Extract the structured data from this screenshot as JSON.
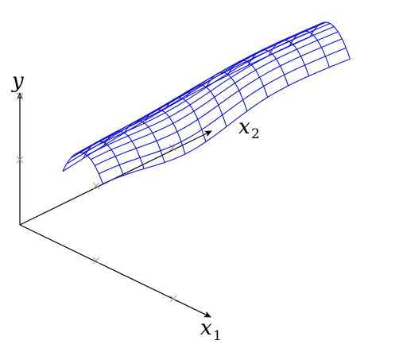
{
  "diagram": {
    "type": "3d-surface-mesh",
    "axes": {
      "x1": {
        "letter": "x",
        "sub": "1"
      },
      "x2": {
        "letter": "x",
        "sub": "2"
      },
      "y": {
        "letter": "y"
      }
    },
    "tick_marks_per_axis": 2,
    "mesh": {
      "rows": 10,
      "cols": 12
    },
    "colors": {
      "axis": "#000000",
      "tick": "#9a9a9a",
      "mesh": "#1010d8"
    }
  }
}
